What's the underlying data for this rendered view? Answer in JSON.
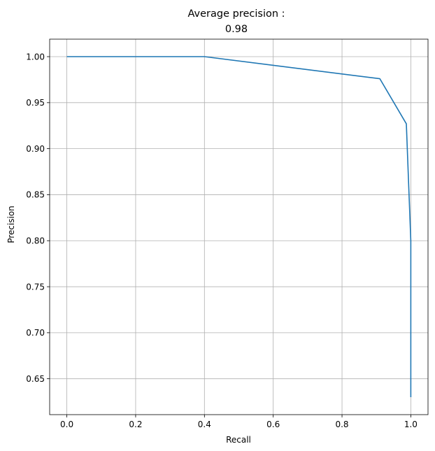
{
  "chart_data": {
    "type": "line",
    "title_lines": [
      "Average precision :",
      "0.98"
    ],
    "xlabel": "Recall",
    "ylabel": "Precision",
    "xlim": [
      -0.05,
      1.05
    ],
    "ylim": [
      0.611,
      1.019
    ],
    "xticks": [
      0.0,
      0.2,
      0.4,
      0.6,
      0.8,
      1.0
    ],
    "xtick_labels": [
      "0.0",
      "0.2",
      "0.4",
      "0.6",
      "0.8",
      "1.0"
    ],
    "yticks": [
      0.65,
      0.7,
      0.75,
      0.8,
      0.85,
      0.9,
      0.95,
      1.0
    ],
    "ytick_labels": [
      "0.65",
      "0.70",
      "0.75",
      "0.80",
      "0.85",
      "0.90",
      "0.95",
      "1.00"
    ],
    "grid": true,
    "series": [
      {
        "color": "#1f77b4",
        "x": [
          0.0,
          0.4,
          0.91,
          0.987,
          1.0,
          1.0
        ],
        "y": [
          1.0,
          1.0,
          0.976,
          0.927,
          0.8,
          0.63
        ]
      }
    ]
  }
}
